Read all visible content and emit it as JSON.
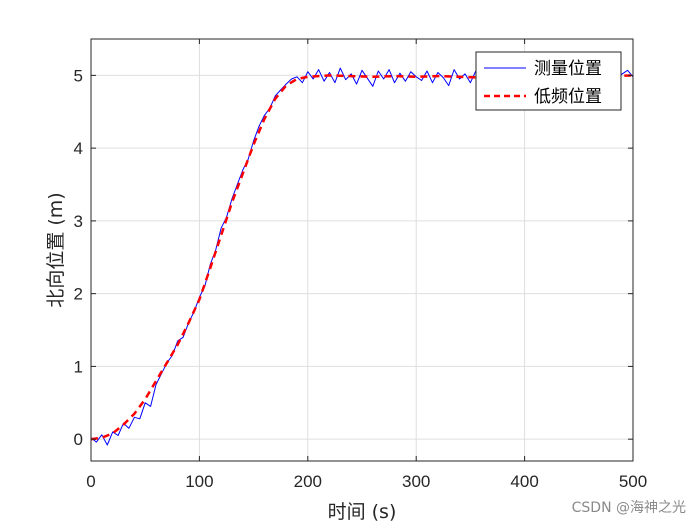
{
  "chart_data": {
    "type": "line",
    "xlabel": "时间 (s)",
    "ylabel": "北向位置 (m)",
    "xlim": [
      0,
      500
    ],
    "ylim": [
      -0.3,
      5.5
    ],
    "xticks": [
      0,
      100,
      200,
      300,
      400,
      500
    ],
    "yticks": [
      0,
      1,
      2,
      3,
      4,
      5
    ],
    "grid": true,
    "legend_position": "top-right",
    "series": [
      {
        "name": "测量位置",
        "color": "#0000ff",
        "style": "solid",
        "x": [
          0,
          5,
          10,
          15,
          20,
          25,
          30,
          35,
          40,
          45,
          50,
          55,
          60,
          65,
          70,
          75,
          80,
          85,
          90,
          95,
          100,
          105,
          110,
          115,
          120,
          125,
          130,
          135,
          140,
          145,
          150,
          155,
          160,
          165,
          170,
          175,
          180,
          185,
          190,
          195,
          200,
          205,
          210,
          215,
          220,
          225,
          230,
          235,
          240,
          245,
          250,
          255,
          260,
          265,
          270,
          275,
          280,
          285,
          290,
          295,
          300,
          305,
          310,
          315,
          320,
          325,
          330,
          335,
          340,
          345,
          350,
          355,
          360,
          365,
          370,
          375,
          380,
          385,
          390,
          395,
          400,
          405,
          410,
          415,
          420,
          425,
          430,
          435,
          440,
          445,
          450,
          455,
          460,
          465,
          470,
          475,
          480,
          485,
          490,
          495,
          500
        ],
        "y": [
          0.02,
          -0.04,
          0.06,
          -0.08,
          0.1,
          0.05,
          0.22,
          0.15,
          0.3,
          0.28,
          0.5,
          0.45,
          0.75,
          0.9,
          1.05,
          1.15,
          1.35,
          1.4,
          1.6,
          1.75,
          1.95,
          2.1,
          2.4,
          2.6,
          2.9,
          3.05,
          3.3,
          3.5,
          3.7,
          3.85,
          4.1,
          4.3,
          4.45,
          4.55,
          4.72,
          4.8,
          4.88,
          4.95,
          4.98,
          4.9,
          5.05,
          4.95,
          5.08,
          4.92,
          5.04,
          4.9,
          5.1,
          4.94,
          5.02,
          4.88,
          5.07,
          4.96,
          4.85,
          5.06,
          4.95,
          5.08,
          4.9,
          5.03,
          4.92,
          5.05,
          4.98,
          4.93,
          5.06,
          4.9,
          5.04,
          4.97,
          4.86,
          5.08,
          4.95,
          5.02,
          4.9,
          5.06,
          4.93,
          5.08,
          4.92,
          5.05,
          4.95,
          5.04,
          4.89,
          5.02,
          4.97,
          5.09,
          4.91,
          5.05,
          4.94,
          5.08,
          4.96,
          4.88,
          5.06,
          4.95,
          5.03,
          4.91,
          5.07,
          4.96,
          5.04,
          4.93,
          5.06,
          4.95,
          5.02,
          5.07,
          4.98
        ]
      },
      {
        "name": "低频位置",
        "color": "#ff0000",
        "style": "dashed",
        "x": [
          0,
          10,
          20,
          30,
          40,
          50,
          60,
          70,
          80,
          90,
          100,
          110,
          120,
          130,
          140,
          150,
          160,
          170,
          180,
          190,
          200,
          220,
          240,
          260,
          280,
          300,
          320,
          340,
          360,
          380,
          400,
          420,
          440,
          460,
          480,
          500
        ],
        "y": [
          0.0,
          0.02,
          0.08,
          0.2,
          0.35,
          0.55,
          0.8,
          1.05,
          1.3,
          1.6,
          1.92,
          2.35,
          2.8,
          3.25,
          3.65,
          4.05,
          4.4,
          4.68,
          4.86,
          4.95,
          4.98,
          5.0,
          4.99,
          4.98,
          4.99,
          4.98,
          4.99,
          4.98,
          4.97,
          4.98,
          4.99,
          5.0,
          4.99,
          4.98,
          4.99,
          5.0
        ]
      }
    ]
  },
  "watermark": "CSDN @海神之光"
}
